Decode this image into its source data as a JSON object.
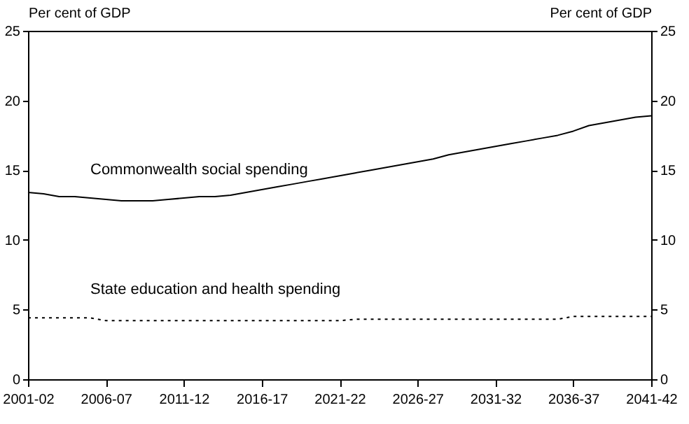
{
  "chart_data": {
    "type": "line",
    "ylabel": "Per cent of GDP",
    "y2label": "Per cent of GDP",
    "categories": [
      "2001-02",
      null,
      null,
      null,
      null,
      "2006-07",
      null,
      null,
      null,
      null,
      "2011-12",
      null,
      null,
      null,
      null,
      "2016-17",
      null,
      null,
      null,
      null,
      "2021-22",
      null,
      null,
      null,
      null,
      "2026-27",
      null,
      null,
      null,
      null,
      "2031-32",
      null,
      null,
      null,
      null,
      "2036-37",
      null,
      null,
      null,
      null,
      "2041-42"
    ],
    "series": [
      {
        "name": "Commonwealth social spending",
        "color": "#000000",
        "line_style": "solid",
        "values": [
          13.4,
          13.3,
          13.1,
          13.1,
          13.0,
          12.9,
          12.8,
          12.8,
          12.8,
          12.9,
          13.0,
          13.1,
          13.1,
          13.2,
          13.4,
          13.6,
          13.8,
          14.0,
          14.2,
          14.4,
          14.6,
          14.8,
          15.0,
          15.2,
          15.4,
          15.6,
          15.8,
          16.1,
          16.3,
          16.5,
          16.7,
          16.9,
          17.1,
          17.3,
          17.5,
          17.8,
          18.2,
          18.4,
          18.6,
          18.8,
          18.9
        ]
      },
      {
        "name": "State education and health spending",
        "color": "#000000",
        "line_style": "dotted",
        "values": [
          4.4,
          4.4,
          4.4,
          4.4,
          4.4,
          4.2,
          4.2,
          4.2,
          4.2,
          4.2,
          4.2,
          4.2,
          4.2,
          4.2,
          4.2,
          4.2,
          4.2,
          4.2,
          4.2,
          4.2,
          4.2,
          4.3,
          4.3,
          4.3,
          4.3,
          4.3,
          4.3,
          4.3,
          4.3,
          4.3,
          4.3,
          4.3,
          4.3,
          4.3,
          4.3,
          4.5,
          4.5,
          4.5,
          4.5,
          4.5,
          4.5
        ]
      }
    ],
    "ylim": [
      0,
      25
    ],
    "yticks": [
      0,
      5,
      10,
      15,
      20,
      25
    ],
    "y2lim": [
      0,
      25
    ],
    "y2ticks": [
      0,
      5,
      10,
      15,
      20,
      25
    ],
    "grid": false
  }
}
